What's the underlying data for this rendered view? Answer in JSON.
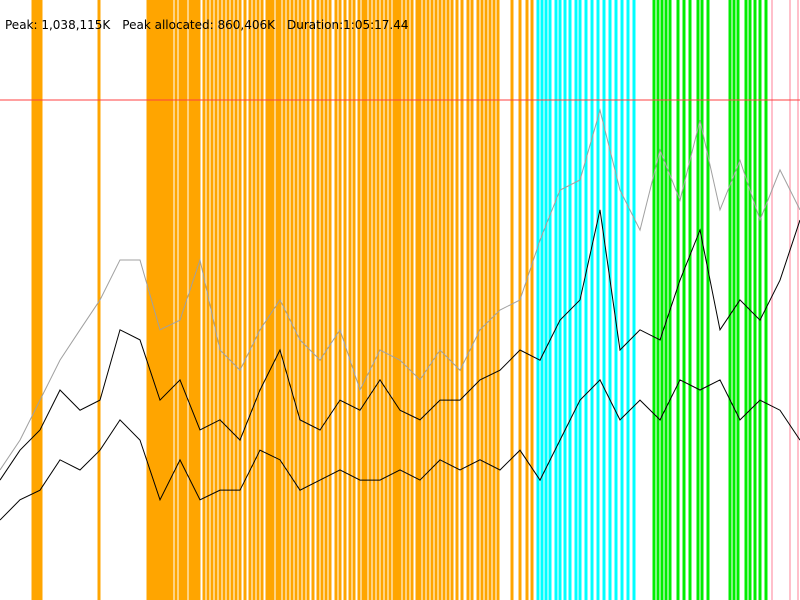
{
  "chart_data": {
    "type": "line",
    "header": [
      "Peak: 1,038,115K",
      "Peak allocated: 860,406K",
      "Duration:1:05:17.44"
    ],
    "xlim": [
      0,
      800
    ],
    "ylim": [
      0,
      1245738
    ],
    "peak_line": {
      "value": 1038115,
      "color": "#ff4040"
    },
    "x": [
      0,
      20,
      40,
      60,
      80,
      100,
      120,
      140,
      160,
      180,
      200,
      220,
      240,
      260,
      280,
      300,
      320,
      340,
      360,
      380,
      400,
      420,
      440,
      460,
      480,
      500,
      520,
      540,
      560,
      580,
      600,
      620,
      640,
      660,
      680,
      700,
      720,
      740,
      760,
      780,
      800
    ],
    "series": [
      {
        "color": "#a0a0a0",
        "values": [
          270000,
          332000,
          415000,
          498000,
          561000,
          623000,
          706000,
          706000,
          561000,
          581000,
          706000,
          519000,
          477000,
          561000,
          623000,
          540000,
          498000,
          561000,
          436000,
          519000,
          498000,
          457000,
          519000,
          477000,
          561000,
          602000,
          623000,
          747000,
          851000,
          872000,
          1017000,
          851000,
          768000,
          934000,
          830000,
          996000,
          810000,
          913000,
          789000,
          893000,
          810000
        ]
      },
      {
        "color": "#000000",
        "values": [
          249000,
          311000,
          353000,
          436000,
          394000,
          415000,
          561000,
          540000,
          415000,
          457000,
          353000,
          374000,
          332000,
          436000,
          519000,
          374000,
          353000,
          415000,
          394000,
          457000,
          394000,
          374000,
          415000,
          415000,
          457000,
          477000,
          519000,
          498000,
          581000,
          623000,
          810000,
          519000,
          561000,
          540000,
          664000,
          768000,
          561000,
          623000,
          581000,
          664000,
          789000
        ]
      },
      {
        "color": "#000000",
        "values": [
          166000,
          208000,
          228000,
          291000,
          270000,
          311000,
          374000,
          332000,
          208000,
          291000,
          208000,
          228000,
          228000,
          311000,
          291000,
          228000,
          249000,
          270000,
          249000,
          249000,
          270000,
          249000,
          291000,
          270000,
          291000,
          270000,
          311000,
          249000,
          332000,
          415000,
          457000,
          374000,
          415000,
          374000,
          457000,
          436000,
          457000,
          374000,
          415000,
          394000,
          332000
        ]
      }
    ],
    "events": [
      {
        "color": "#ffa500",
        "x": [
          33,
          36,
          38,
          41,
          99,
          148,
          151,
          154,
          157,
          160,
          163,
          166,
          169,
          172,
          176,
          180,
          183,
          186,
          190,
          193,
          196,
          199,
          204,
          208,
          212,
          216,
          220,
          224,
          228,
          232,
          236,
          240,
          245,
          250,
          254,
          258,
          262,
          267,
          270,
          273,
          277,
          280,
          284,
          288,
          292,
          296,
          300,
          304,
          308,
          313,
          318,
          322,
          326,
          330,
          336,
          340,
          345,
          350,
          354,
          359,
          363,
          366,
          370,
          374,
          378,
          382,
          386,
          390,
          394,
          397,
          400,
          404,
          408,
          412,
          417,
          420,
          424,
          428,
          432,
          436,
          440,
          444,
          448,
          452,
          457,
          462,
          468,
          472,
          478,
          482,
          486,
          490,
          494,
          498,
          512,
          520,
          527,
          532
        ]
      },
      {
        "color": "#00ffff",
        "x": [
          538,
          542,
          546,
          550,
          556,
          560,
          565,
          570,
          576,
          580,
          586,
          592,
          598,
          604,
          610,
          616,
          622,
          628,
          634
        ]
      },
      {
        "color": "#00ee00",
        "x": [
          654,
          658,
          662,
          666,
          670,
          678,
          684,
          690,
          698,
          702,
          708,
          730,
          734,
          738,
          746,
          750,
          755,
          760,
          766
        ]
      },
      {
        "color": "#ffc0cb",
        "x": [
          772,
          790,
          798
        ]
      }
    ]
  }
}
